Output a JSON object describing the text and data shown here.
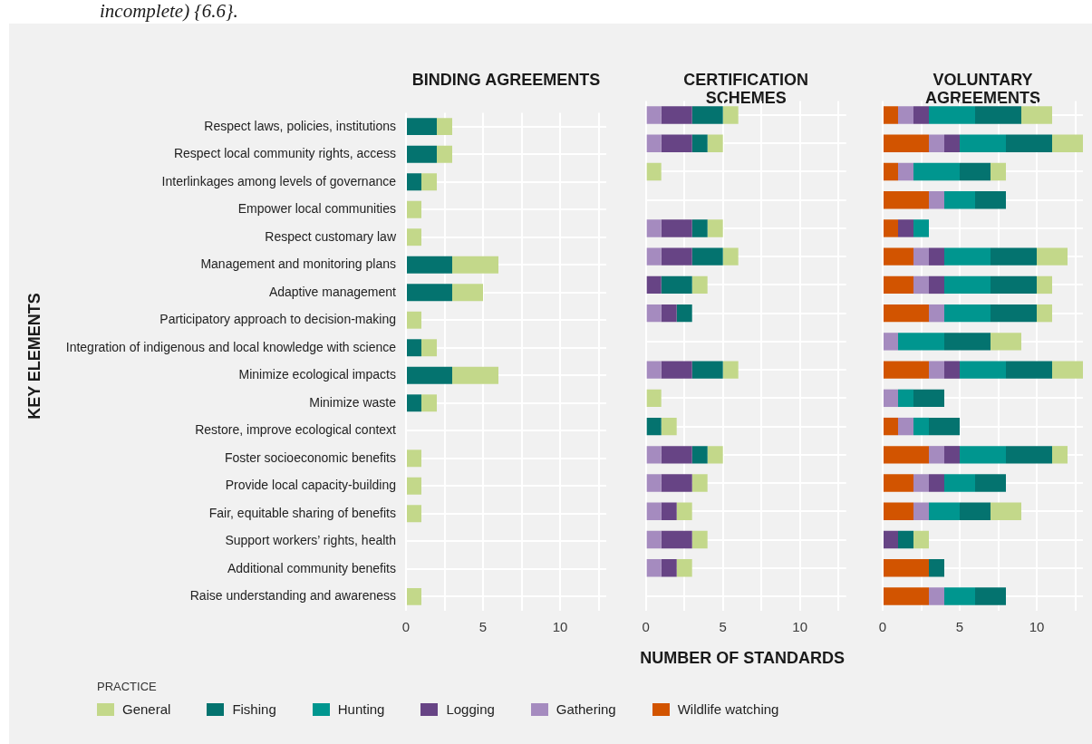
{
  "chart_data": [
    {
      "type": "bar",
      "orientation": "horizontal",
      "stacked": true,
      "title": "BINDING AGREEMENTS",
      "ylabel": "KEY ELEMENTS",
      "legend": "bottom",
      "legend_title": "PRACTICE",
      "annotations": [
        "incomplete) {6.6}."
      ],
      "grid": true,
      "categories": [
        "Respect laws, policies, institutions",
        "Respect local community rights, access",
        "Interlinkages among levels of governance",
        "Empower local communities",
        "Respect customary law",
        "Management and monitoring plans",
        "Adaptive management",
        "Participatory approach to decision-making",
        "Integration of indigenous and local knowledge with science",
        "Minimize ecological impacts",
        "Minimize waste",
        "Restore, improve ecological context",
        "Foster socioeconomic benefits",
        "Provide local capacity-building",
        "Fair, equitable sharing of benefits",
        "Support workers’ rights, health",
        "Additional community benefits",
        "Raise understanding and awareness"
      ],
      "xlim": [
        0,
        13
      ],
      "xticks": [
        0,
        {
          "value": 2.5,
          "label": null
        },
        5,
        {
          "value": 7.5,
          "label": null
        },
        10,
        {
          "value": 12.5,
          "label": null
        }
      ],
      "series": [
        {
          "name": "Wildlife watching",
          "color": "#d25400",
          "values": [
            null,
            null,
            null,
            null,
            null,
            null,
            null,
            null,
            null,
            null,
            null,
            null,
            null,
            null,
            null,
            null,
            null,
            null
          ]
        },
        {
          "name": "Gathering",
          "color": "#a58bbf",
          "values": [
            null,
            null,
            null,
            null,
            null,
            null,
            null,
            null,
            null,
            null,
            null,
            null,
            null,
            null,
            null,
            null,
            null,
            null
          ]
        },
        {
          "name": "Logging",
          "color": "#674485",
          "values": [
            null,
            null,
            null,
            null,
            null,
            null,
            null,
            null,
            null,
            null,
            null,
            null,
            null,
            null,
            null,
            null,
            null,
            null
          ]
        },
        {
          "name": "Hunting",
          "color": "#00968f",
          "values": [
            null,
            null,
            null,
            null,
            null,
            null,
            null,
            null,
            null,
            null,
            null,
            null,
            null,
            null,
            null,
            null,
            null,
            null
          ]
        },
        {
          "name": "Fishing",
          "color": "#04736f",
          "values": [
            2,
            2,
            1,
            null,
            null,
            3,
            3,
            null,
            1,
            3,
            1,
            null,
            null,
            null,
            null,
            null,
            null,
            null
          ]
        },
        {
          "name": "General",
          "color": "#c3d88a",
          "values": [
            1,
            1,
            1,
            1,
            1,
            3,
            2,
            1,
            1,
            3,
            1,
            null,
            1,
            1,
            1,
            null,
            null,
            1
          ]
        }
      ]
    },
    {
      "type": "bar",
      "orientation": "horizontal",
      "stacked": true,
      "title": "CERTIFICATION SCHEMES",
      "xlabel": "NUMBER OF STANDARDS",
      "grid": true,
      "tick_labels": "x",
      "categories": [
        "Respect laws, policies, institutions",
        "Respect local community rights, access",
        "Interlinkages among levels of governance",
        "Empower local communities",
        "Respect customary law",
        "Management and monitoring plans",
        "Adaptive management",
        "Participatory approach to decision-making",
        "Integration of indigenous and local knowledge with science",
        "Minimize ecological impacts",
        "Minimize waste",
        "Restore, improve ecological context",
        "Foster socioeconomic benefits",
        "Provide local capacity-building",
        "Fair, equitable sharing of benefits",
        "Support workers’ rights, health",
        "Additional community benefits",
        "Raise understanding and awareness"
      ],
      "xlim": [
        0,
        13
      ],
      "xticks": [
        0,
        {
          "value": 2.5,
          "label": null
        },
        5,
        {
          "value": 7.5,
          "label": null
        },
        10,
        {
          "value": 12.5,
          "label": null
        }
      ],
      "series": [
        {
          "color": "#d25400",
          "values": [
            null,
            null,
            null,
            null,
            null,
            null,
            null,
            null,
            null,
            null,
            null,
            null,
            null,
            null,
            null,
            null,
            null,
            null
          ]
        },
        {
          "color": "#a58bbf",
          "values": [
            1,
            1,
            null,
            null,
            1,
            1,
            null,
            1,
            null,
            1,
            null,
            null,
            1,
            1,
            1,
            1,
            1,
            null
          ]
        },
        {
          "color": "#674485",
          "values": [
            2,
            2,
            null,
            null,
            2,
            2,
            1,
            1,
            null,
            2,
            null,
            null,
            2,
            2,
            1,
            2,
            1,
            null
          ]
        },
        {
          "color": "#00968f",
          "values": [
            null,
            null,
            null,
            null,
            null,
            null,
            null,
            null,
            null,
            null,
            null,
            null,
            null,
            null,
            null,
            null,
            null,
            null
          ]
        },
        {
          "color": "#04736f",
          "values": [
            2,
            1,
            null,
            null,
            1,
            2,
            2,
            1,
            null,
            2,
            null,
            1,
            1,
            null,
            null,
            null,
            null,
            null
          ]
        },
        {
          "color": "#c3d88a",
          "values": [
            1,
            1,
            1,
            null,
            1,
            1,
            1,
            null,
            null,
            1,
            1,
            1,
            1,
            1,
            1,
            1,
            1,
            null
          ]
        }
      ]
    },
    {
      "type": "bar",
      "orientation": "horizontal",
      "stacked": true,
      "title": "VOLUNTARY AGREEMENTS",
      "grid": true,
      "tick_labels": "x",
      "categories": [
        "Respect laws, policies, institutions",
        "Respect local community rights, access",
        "Interlinkages among levels of governance",
        "Empower local communities",
        "Respect customary law",
        "Management and monitoring plans",
        "Adaptive management",
        "Participatory approach to decision-making",
        "Integration of indigenous and local knowledge with science",
        "Minimize ecological impacts",
        "Minimize waste",
        "Restore, improve ecological context",
        "Foster socioeconomic benefits",
        "Provide local capacity-building",
        "Fair, equitable sharing of benefits",
        "Support workers’ rights, health",
        "Additional community benefits",
        "Raise understanding and awareness"
      ],
      "xlim": [
        0,
        13
      ],
      "xticks": [
        0,
        {
          "value": 2.5,
          "label": null
        },
        5,
        {
          "value": 7.5,
          "label": null
        },
        10,
        {
          "value": 12.5,
          "label": null
        }
      ],
      "series": [
        {
          "color": "#d25400",
          "values": [
            1,
            3,
            1,
            3,
            1,
            2,
            2,
            3,
            null,
            3,
            null,
            1,
            3,
            2,
            2,
            null,
            3,
            3
          ]
        },
        {
          "color": "#a58bbf",
          "values": [
            1,
            1,
            1,
            1,
            null,
            1,
            1,
            1,
            1,
            1,
            1,
            1,
            1,
            1,
            1,
            null,
            null,
            1
          ]
        },
        {
          "color": "#674485",
          "values": [
            1,
            1,
            null,
            null,
            1,
            1,
            1,
            null,
            null,
            1,
            null,
            null,
            1,
            1,
            null,
            1,
            null,
            null
          ]
        },
        {
          "color": "#00968f",
          "values": [
            3,
            3,
            3,
            2,
            1,
            3,
            3,
            3,
            3,
            3,
            1,
            1,
            3,
            2,
            2,
            null,
            null,
            2
          ]
        },
        {
          "color": "#04736f",
          "values": [
            3,
            3,
            2,
            2,
            null,
            3,
            3,
            3,
            3,
            3,
            2,
            2,
            3,
            2,
            2,
            1,
            1,
            2
          ]
        },
        {
          "color": "#c3d88a",
          "values": [
            2,
            2,
            1,
            null,
            null,
            2,
            1,
            1,
            2,
            2,
            null,
            null,
            1,
            null,
            2,
            1,
            null,
            null
          ]
        }
      ]
    }
  ]
}
